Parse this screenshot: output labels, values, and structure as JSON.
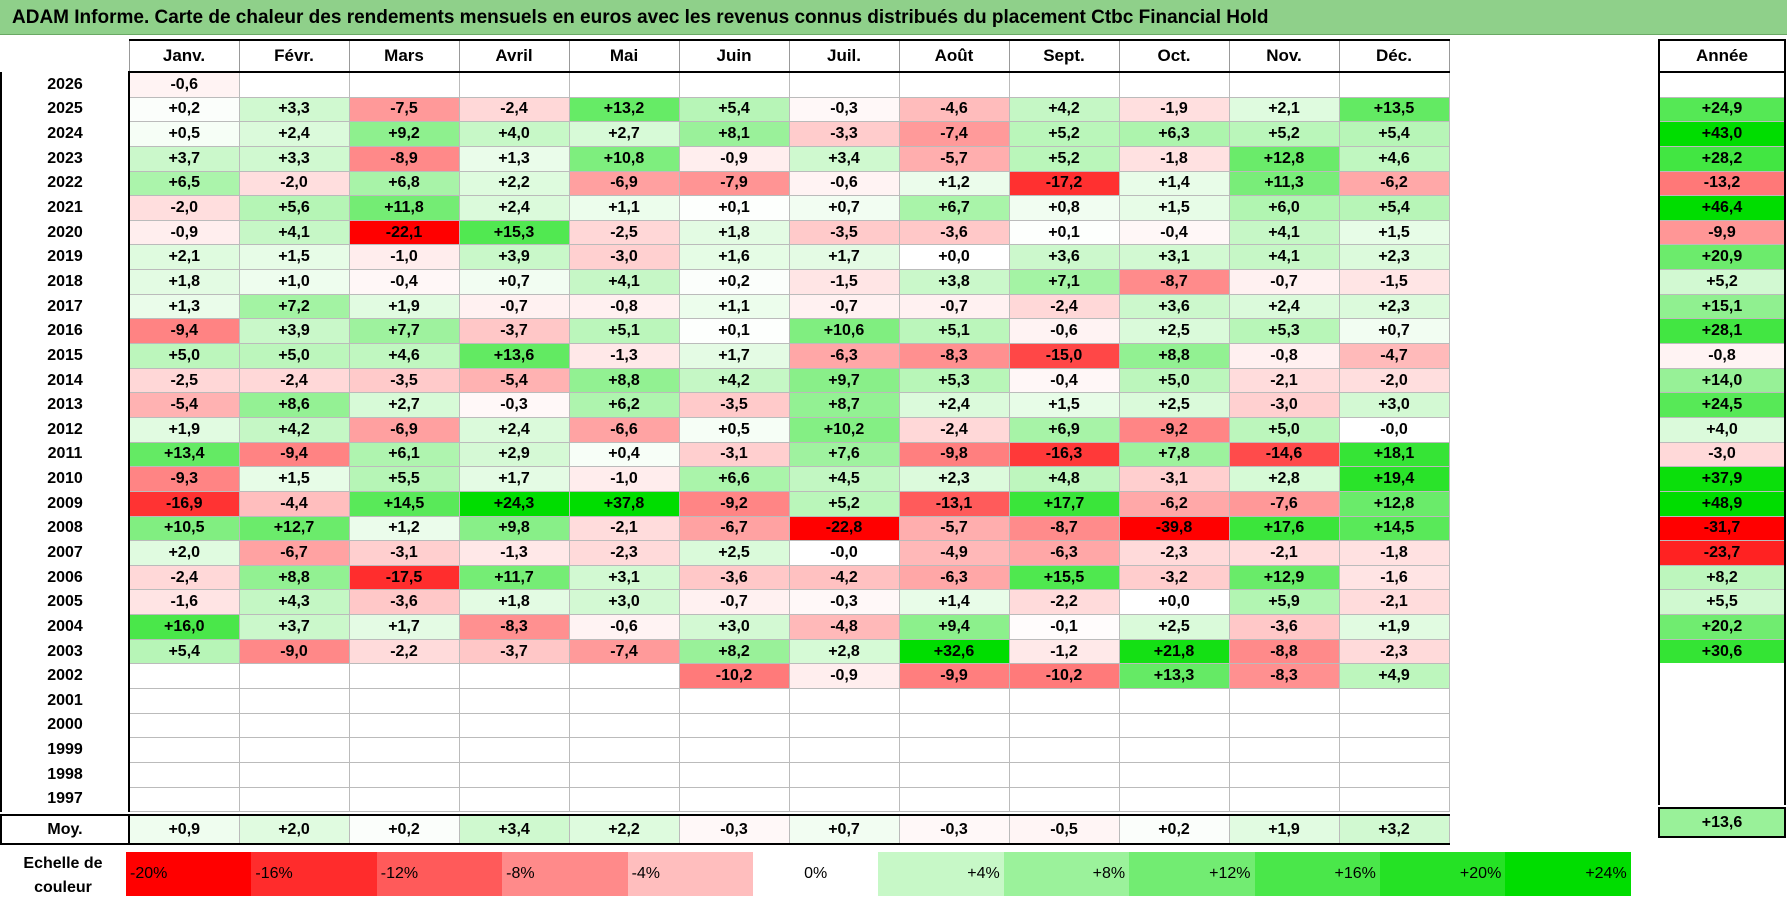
{
  "title": "ADAM Informe. Carte de chaleur des rendements mensuels en euros avec les revenus connus distribués du placement Ctbc Financial Hold",
  "chart_data": {
    "type": "heatmap",
    "title": "ADAM Informe. Carte de chaleur des rendements mensuels en euros avec les revenus connus distribués du placement Ctbc Financial Hold",
    "months": [
      "Janv.",
      "Févr.",
      "Mars",
      "Avril",
      "Mai",
      "Juin",
      "Juil.",
      "Août",
      "Sept.",
      "Oct.",
      "Nov.",
      "Déc."
    ],
    "annual_header": "Année",
    "rows": [
      {
        "year": "2026",
        "values": [
          "-0,6",
          "",
          "",
          "",
          "",
          "",
          "",
          "",
          "",
          "",
          "",
          ""
        ],
        "annual": ""
      },
      {
        "year": "2025",
        "values": [
          "+0,2",
          "+3,3",
          "-7,5",
          "-2,4",
          "+13,2",
          "+5,4",
          "-0,3",
          "-4,6",
          "+4,2",
          "-1,9",
          "+2,1",
          "+13,5"
        ],
        "annual": "+24,9"
      },
      {
        "year": "2024",
        "values": [
          "+0,5",
          "+2,4",
          "+9,2",
          "+4,0",
          "+2,7",
          "+8,1",
          "-3,3",
          "-7,4",
          "+5,2",
          "+6,3",
          "+5,2",
          "+5,4"
        ],
        "annual": "+43,0"
      },
      {
        "year": "2023",
        "values": [
          "+3,7",
          "+3,3",
          "-8,9",
          "+1,3",
          "+10,8",
          "-0,9",
          "+3,4",
          "-5,7",
          "+5,2",
          "-1,8",
          "+12,8",
          "+4,6"
        ],
        "annual": "+28,2"
      },
      {
        "year": "2022",
        "values": [
          "+6,5",
          "-2,0",
          "+6,8",
          "+2,2",
          "-6,9",
          "-7,9",
          "-0,6",
          "+1,2",
          "-17,2",
          "+1,4",
          "+11,3",
          "-6,2"
        ],
        "annual": "-13,2"
      },
      {
        "year": "2021",
        "values": [
          "-2,0",
          "+5,6",
          "+11,8",
          "+2,4",
          "+1,1",
          "+0,1",
          "+0,7",
          "+6,7",
          "+0,8",
          "+1,5",
          "+6,0",
          "+5,4"
        ],
        "annual": "+46,4"
      },
      {
        "year": "2020",
        "values": [
          "-0,9",
          "+4,1",
          "-22,1",
          "+15,3",
          "-2,5",
          "+1,8",
          "-3,5",
          "-3,6",
          "+0,1",
          "-0,4",
          "+4,1",
          "+1,5"
        ],
        "annual": "-9,9"
      },
      {
        "year": "2019",
        "values": [
          "+2,1",
          "+1,5",
          "-1,0",
          "+3,9",
          "-3,0",
          "+1,6",
          "+1,7",
          "+0,0",
          "+3,6",
          "+3,1",
          "+4,1",
          "+2,3"
        ],
        "annual": "+20,9"
      },
      {
        "year": "2018",
        "values": [
          "+1,8",
          "+1,0",
          "-0,4",
          "+0,7",
          "+4,1",
          "+0,2",
          "-1,5",
          "+3,8",
          "+7,1",
          "-8,7",
          "-0,7",
          "-1,5"
        ],
        "annual": "+5,2"
      },
      {
        "year": "2017",
        "values": [
          "+1,3",
          "+7,2",
          "+1,9",
          "-0,7",
          "-0,8",
          "+1,1",
          "-0,7",
          "-0,7",
          "-2,4",
          "+3,6",
          "+2,4",
          "+2,3"
        ],
        "annual": "+15,1"
      },
      {
        "year": "2016",
        "values": [
          "-9,4",
          "+3,9",
          "+7,7",
          "-3,7",
          "+5,1",
          "+0,1",
          "+10,6",
          "+5,1",
          "-0,6",
          "+2,5",
          "+5,3",
          "+0,7"
        ],
        "annual": "+28,1"
      },
      {
        "year": "2015",
        "values": [
          "+5,0",
          "+5,0",
          "+4,6",
          "+13,6",
          "-1,3",
          "+1,7",
          "-6,3",
          "-8,3",
          "-15,0",
          "+8,8",
          "-0,8",
          "-4,7"
        ],
        "annual": "-0,8"
      },
      {
        "year": "2014",
        "values": [
          "-2,5",
          "-2,4",
          "-3,5",
          "-5,4",
          "+8,8",
          "+4,2",
          "+9,7",
          "+5,3",
          "-0,4",
          "+5,0",
          "-2,1",
          "-2,0"
        ],
        "annual": "+14,0"
      },
      {
        "year": "2013",
        "values": [
          "-5,4",
          "+8,6",
          "+2,7",
          "-0,3",
          "+6,2",
          "-3,5",
          "+8,7",
          "+2,4",
          "+1,5",
          "+2,5",
          "-3,0",
          "+3,0"
        ],
        "annual": "+24,5"
      },
      {
        "year": "2012",
        "values": [
          "+1,9",
          "+4,2",
          "-6,9",
          "+2,4",
          "-6,6",
          "+0,5",
          "+10,2",
          "-2,4",
          "+6,9",
          "-9,2",
          "+5,0",
          "-0,0"
        ],
        "annual": "+4,0"
      },
      {
        "year": "2011",
        "values": [
          "+13,4",
          "-9,4",
          "+6,1",
          "+2,9",
          "+0,4",
          "-3,1",
          "+7,6",
          "-9,8",
          "-16,3",
          "+7,8",
          "-14,6",
          "+18,1"
        ],
        "annual": "-3,0"
      },
      {
        "year": "2010",
        "values": [
          "-9,3",
          "+1,5",
          "+5,5",
          "+1,7",
          "-1,0",
          "+6,6",
          "+4,5",
          "+2,3",
          "+4,8",
          "-3,1",
          "+2,8",
          "+19,4"
        ],
        "annual": "+37,9"
      },
      {
        "year": "2009",
        "values": [
          "-16,9",
          "-4,4",
          "+14,5",
          "+24,3",
          "+37,8",
          "-9,2",
          "+5,2",
          "-13,1",
          "+17,7",
          "-6,2",
          "-7,6",
          "+12,8"
        ],
        "annual": "+48,9"
      },
      {
        "year": "2008",
        "values": [
          "+10,5",
          "+12,7",
          "+1,2",
          "+9,8",
          "-2,1",
          "-6,7",
          "-22,8",
          "-5,7",
          "-8,7",
          "-39,8",
          "+17,6",
          "+14,5"
        ],
        "annual": "-31,7"
      },
      {
        "year": "2007",
        "values": [
          "+2,0",
          "-6,7",
          "-3,1",
          "-1,3",
          "-2,3",
          "+2,5",
          "-0,0",
          "-4,9",
          "-6,3",
          "-2,3",
          "-2,1",
          "-1,8"
        ],
        "annual": "-23,7"
      },
      {
        "year": "2006",
        "values": [
          "-2,4",
          "+8,8",
          "-17,5",
          "+11,7",
          "+3,1",
          "-3,6",
          "-4,2",
          "-6,3",
          "+15,5",
          "-3,2",
          "+12,9",
          "-1,6"
        ],
        "annual": "+8,2"
      },
      {
        "year": "2005",
        "values": [
          "-1,6",
          "+4,3",
          "-3,6",
          "+1,8",
          "+3,0",
          "-0,7",
          "-0,3",
          "+1,4",
          "-2,2",
          "+0,0",
          "+5,9",
          "-2,1"
        ],
        "annual": "+5,5"
      },
      {
        "year": "2004",
        "values": [
          "+16,0",
          "+3,7",
          "+1,7",
          "-8,3",
          "-0,6",
          "+3,0",
          "-4,8",
          "+9,4",
          "-0,1",
          "+2,5",
          "-3,6",
          "+1,9"
        ],
        "annual": "+20,2"
      },
      {
        "year": "2003",
        "values": [
          "+5,4",
          "-9,0",
          "-2,2",
          "-3,7",
          "-7,4",
          "+8,2",
          "+2,8",
          "+32,6",
          "-1,2",
          "+21,8",
          "-8,8",
          "-2,3"
        ],
        "annual": "+30,6"
      },
      {
        "year": "2002",
        "values": [
          "",
          "",
          "",
          "",
          "",
          "-10,2",
          "-0,9",
          "-9,9",
          "-10,2",
          "+13,3",
          "-8,3",
          "+4,9"
        ],
        "annual": ""
      },
      {
        "year": "2001",
        "values": [
          "",
          "",
          "",
          "",
          "",
          "",
          "",
          "",
          "",
          "",
          "",
          ""
        ],
        "annual": ""
      },
      {
        "year": "2000",
        "values": [
          "",
          "",
          "",
          "",
          "",
          "",
          "",
          "",
          "",
          "",
          "",
          ""
        ],
        "annual": ""
      },
      {
        "year": "1999",
        "values": [
          "",
          "",
          "",
          "",
          "",
          "",
          "",
          "",
          "",
          "",
          "",
          ""
        ],
        "annual": ""
      },
      {
        "year": "1998",
        "values": [
          "",
          "",
          "",
          "",
          "",
          "",
          "",
          "",
          "",
          "",
          "",
          ""
        ],
        "annual": ""
      },
      {
        "year": "1997",
        "values": [
          "",
          "",
          "",
          "",
          "",
          "",
          "",
          "",
          "",
          "",
          "",
          ""
        ],
        "annual": ""
      }
    ],
    "average": {
      "label": "Moy.",
      "values": [
        "+0,9",
        "+2,0",
        "+0,2",
        "+3,4",
        "+2,2",
        "-0,3",
        "+0,7",
        "-0,3",
        "-0,5",
        "+0,2",
        "+1,9",
        "+3,2"
      ],
      "annual": "+13,6"
    },
    "color_scale": {
      "label": "Echelle de couleur",
      "stops": [
        "-20%",
        "-16%",
        "-12%",
        "-8%",
        "-4%",
        "0%",
        "+4%",
        "+8%",
        "+12%",
        "+16%",
        "+20%",
        "+24%"
      ],
      "stop_values": [
        -20,
        -16,
        -12,
        -8,
        -4,
        0,
        4,
        8,
        12,
        16,
        20,
        24
      ]
    },
    "colors": {
      "negative": "#ff0000",
      "positive": "#00dd00",
      "neutral": "#ffffff",
      "title_bg": "#8fd08a"
    }
  }
}
